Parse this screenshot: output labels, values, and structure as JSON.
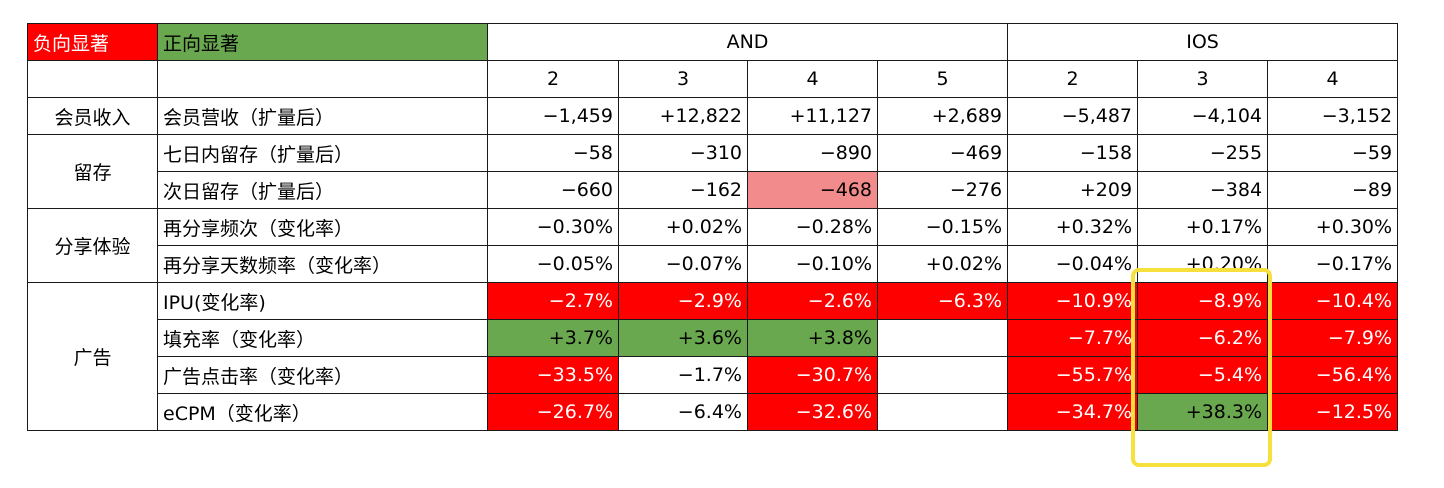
{
  "legend": {
    "negative": "负向显著",
    "positive": "正向显著"
  },
  "groups": {
    "and": "AND",
    "ios": "IOS"
  },
  "colors": {
    "negative_bg": "#ff0000",
    "positive_bg": "#6aa84f",
    "mild_negative_bg": "#f28b8b",
    "highlight_box": "#f7e03c"
  },
  "chart_data": {
    "type": "table",
    "column_groups": [
      {
        "name": "AND",
        "columns": [
          "2",
          "3",
          "4",
          "5"
        ]
      },
      {
        "name": "IOS",
        "columns": [
          "2",
          "3",
          "4"
        ]
      }
    ],
    "rows": [
      {
        "category": "会员收入",
        "metric": "会员营收（扩量后）",
        "values": [
          "−1,459",
          "+12,822",
          "+11,127",
          "+2,689",
          "−5,487",
          "−4,104",
          "−3,152"
        ],
        "status": [
          "",
          "",
          "",
          "",
          "",
          "",
          ""
        ]
      },
      {
        "category": "留存",
        "metric": "七日内留存（扩量后）",
        "values": [
          "−58",
          "−310",
          "−890",
          "−469",
          "−158",
          "−255",
          "−59"
        ],
        "status": [
          "",
          "",
          "",
          "",
          "",
          "",
          ""
        ]
      },
      {
        "category": "",
        "metric": "次日留存（扩量后）",
        "values": [
          "−660",
          "−162",
          "−468",
          "−276",
          "+209",
          "−384",
          "−89"
        ],
        "status": [
          "",
          "",
          "pink",
          "",
          "",
          "",
          ""
        ]
      },
      {
        "category": "分享体验",
        "metric": "再分享频次（变化率）",
        "values": [
          "−0.30%",
          "+0.02%",
          "−0.28%",
          "−0.15%",
          "+0.32%",
          "+0.17%",
          "+0.30%"
        ],
        "status": [
          "",
          "",
          "",
          "",
          "",
          "",
          ""
        ]
      },
      {
        "category": "",
        "metric": "再分享天数频率（变化率）",
        "values": [
          "−0.05%",
          "−0.07%",
          "−0.10%",
          "+0.02%",
          "−0.04%",
          "+0.20%",
          "−0.17%"
        ],
        "status": [
          "",
          "",
          "",
          "",
          "",
          "",
          ""
        ]
      },
      {
        "category": "广告",
        "metric": "IPU(变化率)",
        "values": [
          "−2.7%",
          "−2.9%",
          "−2.6%",
          "−6.3%",
          "−10.9%",
          "−8.9%",
          "−10.4%"
        ],
        "status": [
          "neg",
          "neg",
          "neg",
          "neg",
          "neg",
          "neg",
          "neg"
        ]
      },
      {
        "category": "",
        "metric": "填充率（变化率）",
        "values": [
          "+3.7%",
          "+3.6%",
          "+3.8%",
          "",
          "−7.7%",
          "−6.2%",
          "−7.9%"
        ],
        "status": [
          "pos",
          "pos",
          "pos",
          "",
          "neg",
          "neg",
          "neg"
        ]
      },
      {
        "category": "",
        "metric": "广告点击率（变化率）",
        "values": [
          "−33.5%",
          "−1.7%",
          "−30.7%",
          "",
          "−55.7%",
          "−5.4%",
          "−56.4%"
        ],
        "status": [
          "neg",
          "",
          "neg",
          "",
          "neg",
          "neg",
          "neg"
        ]
      },
      {
        "category": "",
        "metric": "eCPM（变化率）",
        "values": [
          "−26.7%",
          "−6.4%",
          "−32.6%",
          "",
          "−34.7%",
          "+38.3%",
          "−12.5%"
        ],
        "status": [
          "neg",
          "",
          "neg",
          "",
          "neg",
          "pos",
          "neg"
        ]
      }
    ]
  }
}
